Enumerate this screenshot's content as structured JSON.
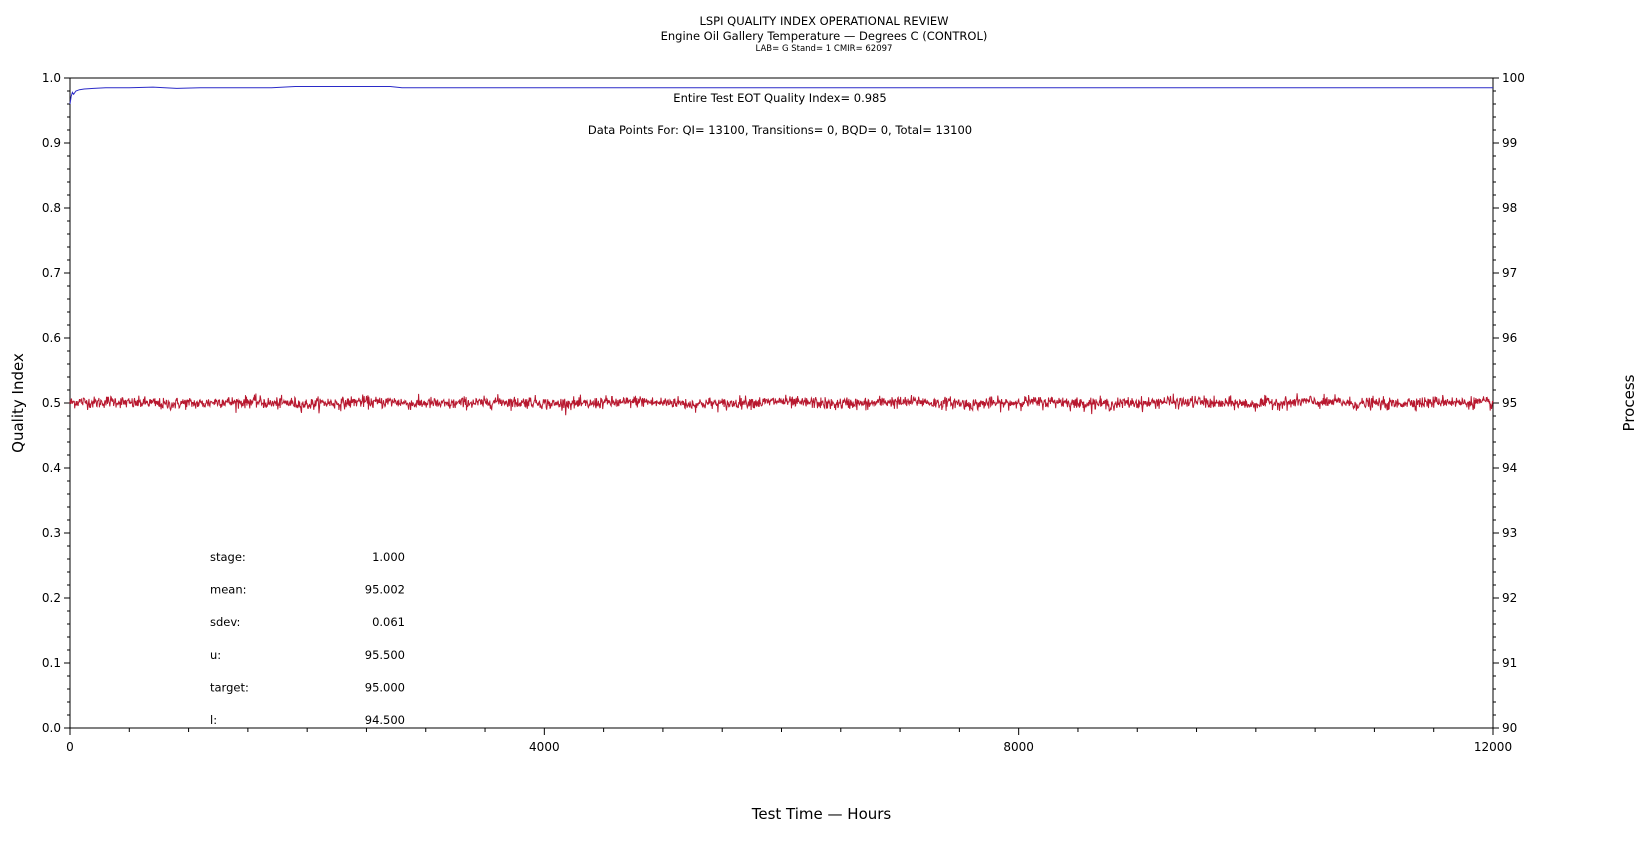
{
  "chart_data": {
    "type": "line",
    "title": "LSPI QUALITY INDEX OPERATIONAL REVIEW",
    "subtitle": "Engine Oil Gallery Temperature — Degrees C (CONTROL)",
    "subtitle2": "LAB= G Stand= 1 CMIR= 62097",
    "xlabel": "Test Time — Hours",
    "ylabel_left": "Quality Index",
    "ylabel_right": "Process",
    "xlim": [
      0,
      12000
    ],
    "ylim_left": [
      0.0,
      1.0
    ],
    "ylim_right": [
      90,
      100
    ],
    "x_ticks": [
      "0",
      "4000",
      "8000",
      "12000"
    ],
    "y_left_ticks": [
      "0.0",
      "0.1",
      "0.2",
      "0.3",
      "0.4",
      "0.5",
      "0.6",
      "0.7",
      "0.8",
      "0.9",
      "1.0"
    ],
    "y_right_ticks": [
      "90",
      "91",
      "92",
      "93",
      "94",
      "95",
      "96",
      "97",
      "98",
      "99",
      "100"
    ],
    "grid": false,
    "annotations": {
      "qi_text": "Entire Test EOT Quality Index=   0.985",
      "points_text": "Data Points For: QI= 13100, Transitions=      0, BQD=      0, Total= 13100"
    },
    "stats": [
      {
        "label": "stage:",
        "value": "1.000"
      },
      {
        "label": "mean:",
        "value": "95.002"
      },
      {
        "label": "sdev:",
        "value": "0.061"
      },
      {
        "label": "u:",
        "value": "95.500"
      },
      {
        "label": "target:",
        "value": "95.000"
      },
      {
        "label": "l:",
        "value": "94.500"
      }
    ],
    "series": [
      {
        "axis": "left",
        "color": "#2b2bc8",
        "x": [
          0,
          10,
          20,
          30,
          50,
          80,
          120,
          200,
          300,
          500,
          700,
          900,
          1100,
          1300,
          1500,
          1700,
          1900,
          2100,
          2300,
          2500,
          2700,
          2800,
          3000,
          4000,
          6000,
          8000,
          10000,
          12000
        ],
        "y": [
          0.96,
          0.972,
          0.978,
          0.975,
          0.98,
          0.982,
          0.983,
          0.984,
          0.985,
          0.985,
          0.986,
          0.984,
          0.985,
          0.985,
          0.985,
          0.985,
          0.987,
          0.987,
          0.987,
          0.987,
          0.987,
          0.985,
          0.985,
          0.985,
          0.985,
          0.985,
          0.985,
          0.985
        ]
      },
      {
        "axis": "right",
        "color": "#b8182f",
        "pattern": "noise",
        "mean": 95.002,
        "sdev": 0.061,
        "points": 13100
      }
    ]
  }
}
